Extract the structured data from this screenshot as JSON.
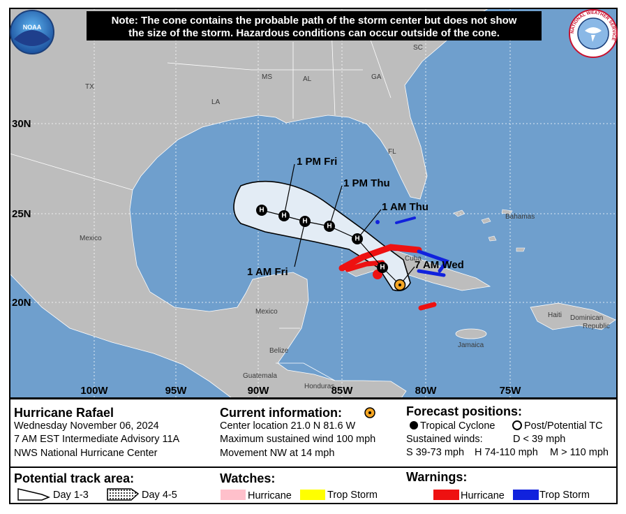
{
  "header": {
    "note": [
      "Note: The cone contains the probable path of the storm center but does not show",
      "the size of the storm. Hazardous conditions can occur outside of the cone."
    ]
  },
  "logos": {
    "noaa": "NOAA",
    "nws": "NATIONAL WEATHER SERVICE"
  },
  "map": {
    "latitudes": [
      "30N",
      "25N",
      "20N"
    ],
    "longitudes": [
      "100W",
      "95W",
      "90W",
      "85W",
      "80W",
      "75W"
    ],
    "places": [
      "TX",
      "LA",
      "MS",
      "AL",
      "GA",
      "SC",
      "FL",
      "Mexico",
      "Mexico",
      "Cuba",
      "Bahamas",
      "Haiti",
      "Dominican",
      "Republic",
      "Jamaica",
      "Belize",
      "Guatemala",
      "Honduras"
    ],
    "forecast_labels": [
      "1 PM Fri",
      "1 PM Thu",
      "1 AM Thu",
      "1 AM Fri",
      "7 AM Wed"
    ],
    "track_markers": [
      "H",
      "H",
      "H",
      "H",
      "H",
      "H"
    ]
  },
  "panel": {
    "storm": {
      "title": "Hurricane Rafael",
      "lines": [
        "Wednesday November 06, 2024",
        "7 AM EST Intermediate Advisory 11A",
        "NWS National Hurricane Center"
      ]
    },
    "current": {
      "title": "Current information:",
      "lines": [
        "Center location 21.0 N 81.6 W",
        "Maximum sustained wind 100 mph",
        "Movement NW at 14 mph"
      ]
    },
    "forecast": {
      "title": "Forecast positions:",
      "tropical": "Tropical Cyclone",
      "post": "Post/Potential TC",
      "winds_title": "Sustained winds:",
      "winds": [
        "D < 39 mph",
        "S 39-73 mph",
        "H 74-110 mph",
        "M > 110 mph"
      ]
    },
    "track_area": {
      "title": "Potential track area:",
      "day13": "Day 1-3",
      "day45": "Day 4-5"
    },
    "watches": {
      "title": "Watches:",
      "hurricane": "Hurricane",
      "trop_storm": "Trop Storm"
    },
    "warnings": {
      "title": "Warnings:",
      "hurricane": "Hurricane",
      "trop_storm": "Trop Storm"
    }
  }
}
